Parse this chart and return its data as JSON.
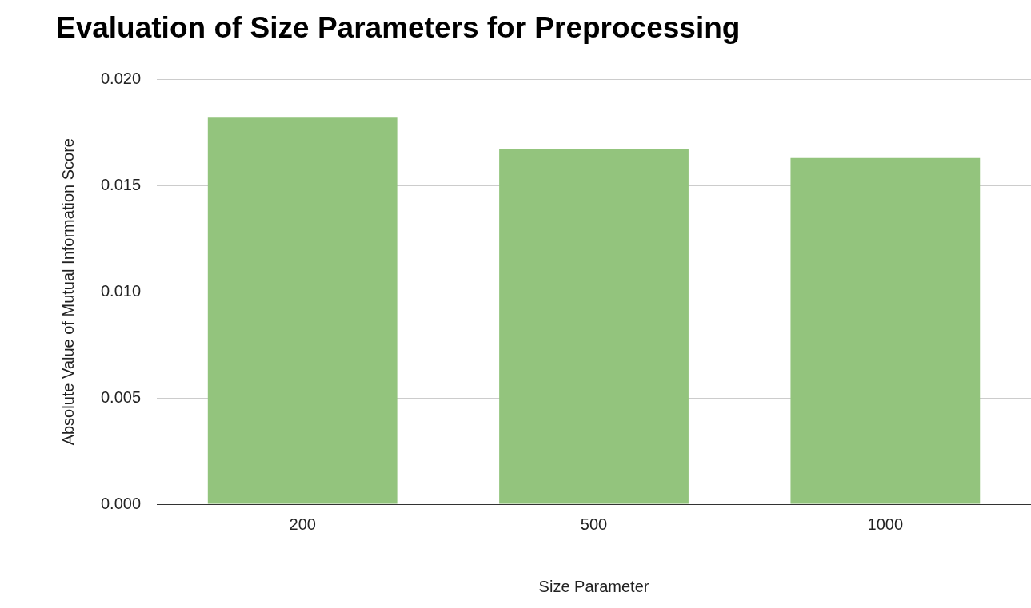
{
  "chart_data": {
    "type": "bar",
    "title": "Evaluation of Size Parameters for Preprocessing",
    "xlabel": "Size Parameter",
    "ylabel": "Absolute Value of Mutual Information Score",
    "categories": [
      "200",
      "500",
      "1000"
    ],
    "values": [
      0.0182,
      0.0167,
      0.0163
    ],
    "color": "#93c47d",
    "ylim": [
      0,
      0.02
    ],
    "yticks": [
      {
        "value": 0,
        "label": "0.000"
      },
      {
        "value": 0.005,
        "label": "0.005"
      },
      {
        "value": 0.01,
        "label": "0.010"
      },
      {
        "value": 0.015,
        "label": "0.015"
      },
      {
        "value": 0.02,
        "label": "0.020"
      }
    ],
    "grid": "y",
    "legend": false
  }
}
